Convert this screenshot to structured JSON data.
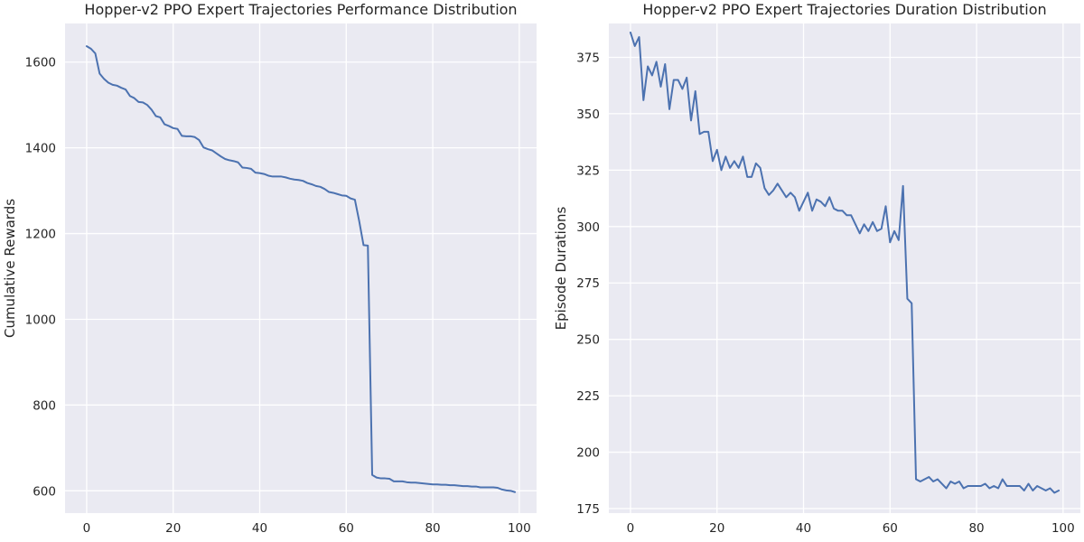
{
  "chart_data": [
    {
      "type": "line",
      "title": "Hopper-v2 PPO Expert Trajectories Performance Distribution",
      "xlabel": "",
      "ylabel": "Cumulative Rewards",
      "xlim": [
        -5,
        104
      ],
      "ylim": [
        548,
        1690
      ],
      "xticks": [
        0,
        20,
        40,
        60,
        80,
        100
      ],
      "yticks": [
        600,
        800,
        1000,
        1200,
        1400,
        1600
      ],
      "grid": true,
      "color": "#4c72b0",
      "background": "#eaeaf2",
      "series": [
        {
          "values": [
            1637,
            1631,
            1620,
            1573,
            1561,
            1552,
            1547,
            1545,
            1540,
            1536,
            1521,
            1516,
            1507,
            1506,
            1500,
            1489,
            1474,
            1471,
            1455,
            1451,
            1446,
            1444,
            1428,
            1427,
            1427,
            1425,
            1418,
            1401,
            1397,
            1394,
            1387,
            1380,
            1374,
            1371,
            1369,
            1366,
            1354,
            1353,
            1351,
            1342,
            1341,
            1339,
            1335,
            1333,
            1333,
            1333,
            1331,
            1328,
            1326,
            1325,
            1323,
            1318,
            1315,
            1311,
            1309,
            1304,
            1297,
            1295,
            1292,
            1289,
            1288,
            1282,
            1279,
            1229,
            1173,
            1172,
            637,
            631,
            629,
            629,
            628,
            622,
            622,
            622,
            620,
            619,
            619,
            618,
            617,
            616,
            615,
            615,
            614,
            614,
            613,
            613,
            612,
            611,
            611,
            610,
            610,
            608,
            608,
            608,
            608,
            607,
            603,
            601,
            600,
            597
          ]
        }
      ]
    },
    {
      "type": "line",
      "title": "Hopper-v2 PPO Expert Trajectories Duration Distribution",
      "xlabel": "",
      "ylabel": "Episode Durations",
      "xlim": [
        -5,
        104
      ],
      "ylim": [
        173,
        390
      ],
      "xticks": [
        0,
        20,
        40,
        60,
        80,
        100
      ],
      "yticks": [
        175,
        200,
        225,
        250,
        275,
        300,
        325,
        350,
        375
      ],
      "grid": true,
      "color": "#4c72b0",
      "background": "#eaeaf2",
      "series": [
        {
          "values": [
            386,
            380,
            384,
            356,
            371,
            367,
            373,
            362,
            372,
            352,
            365,
            365,
            361,
            366,
            347,
            360,
            341,
            342,
            342,
            329,
            334,
            325,
            331,
            326,
            329,
            326,
            331,
            322,
            322,
            328,
            326,
            317,
            314,
            316,
            319,
            316,
            313,
            315,
            313,
            307,
            311,
            315,
            307,
            312,
            311,
            309,
            313,
            308,
            307,
            307,
            305,
            305,
            301,
            297,
            301,
            298,
            302,
            298,
            299,
            309,
            293,
            298,
            294,
            318,
            268,
            266,
            188,
            187,
            188,
            189,
            187,
            188,
            186,
            184,
            187,
            186,
            187,
            184,
            185,
            185,
            185,
            185,
            186,
            184,
            185,
            184,
            188,
            185,
            185,
            185,
            185,
            183,
            186,
            183,
            185,
            184,
            183,
            184,
            182,
            183
          ]
        }
      ]
    }
  ]
}
